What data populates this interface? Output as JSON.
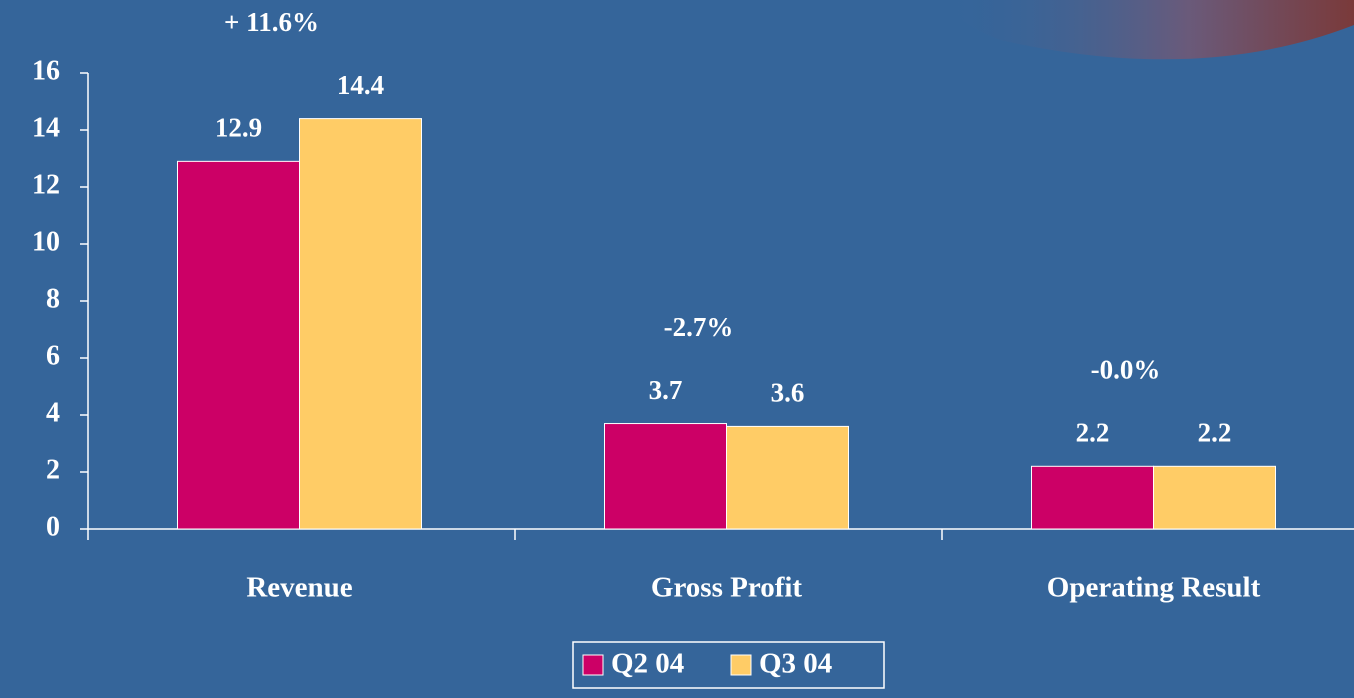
{
  "chart_data": {
    "type": "bar",
    "categories": [
      "Revenue",
      "Gross Profit",
      "Operating Result"
    ],
    "series": [
      {
        "name": "Q2 04",
        "color": "#cc0066",
        "values": [
          12.9,
          3.7,
          2.2
        ]
      },
      {
        "name": "Q3 04",
        "color": "#ffcc66",
        "values": [
          14.4,
          3.6,
          2.2
        ]
      }
    ],
    "annotations": [
      "+ 11.6%",
      "-2.7%",
      "-0.0%"
    ],
    "ylim": [
      0,
      16
    ],
    "yticks": [
      0,
      2,
      4,
      6,
      8,
      10,
      12,
      14,
      16
    ]
  }
}
